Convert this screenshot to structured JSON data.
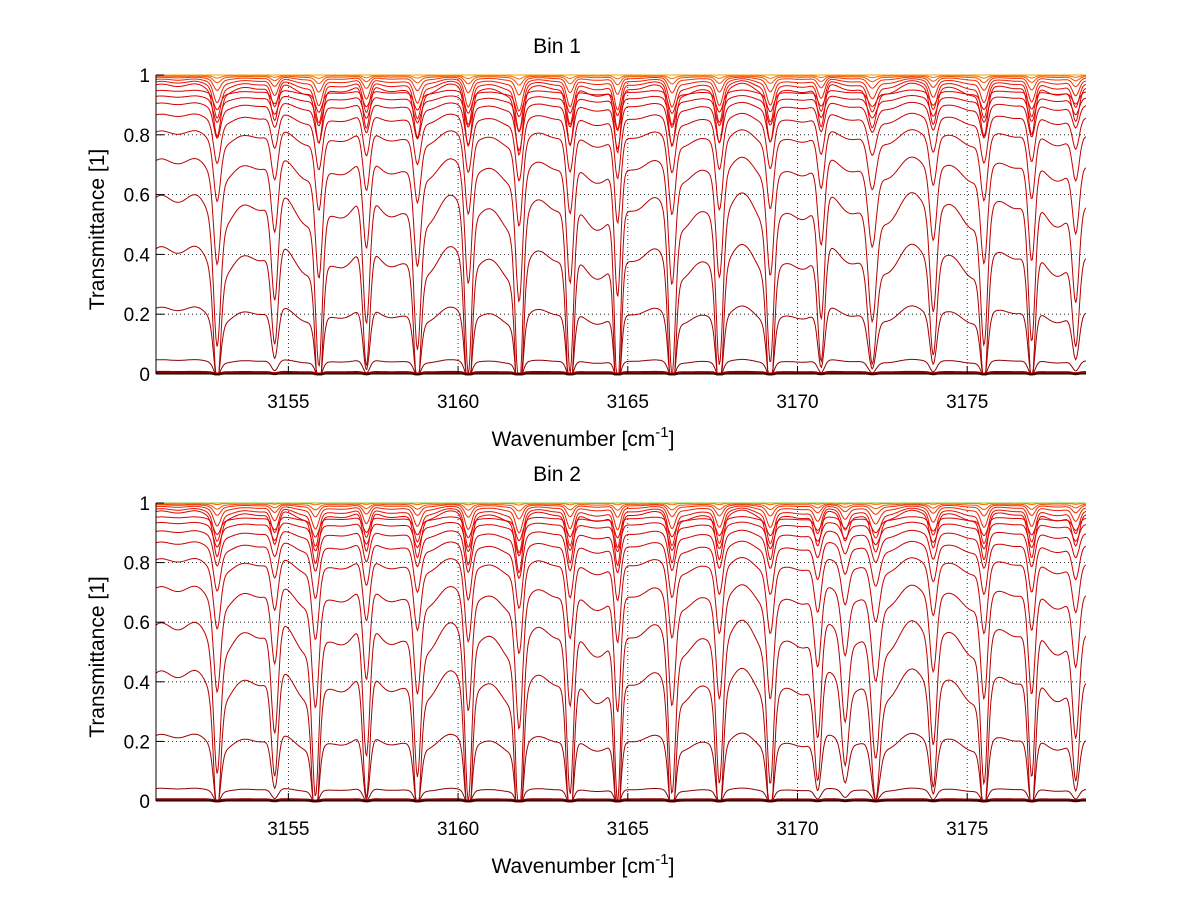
{
  "chart_data": [
    {
      "type": "line",
      "title": "Bin 1",
      "xlabel": "Wavenumber [cm",
      "xlabel_sup": "-1",
      "xlabel_suffix": "]",
      "ylabel": "Transmittance [1]",
      "xlim": [
        3151.1,
        3178.5
      ],
      "ylim": [
        0,
        1
      ],
      "xticks": [
        3155,
        3160,
        3165,
        3170,
        3175
      ],
      "yticks": [
        0,
        0.2,
        0.4,
        0.6,
        0.8,
        1
      ],
      "ytick_labels": [
        "0",
        "0.2",
        "0.4",
        "0.6",
        "0.8",
        "1"
      ],
      "grid": true,
      "grid_style": "dotted",
      "baselines": [
        0.005,
        0.045,
        0.21,
        0.4,
        0.57,
        0.7,
        0.8,
        0.86,
        0.9,
        0.925,
        0.945,
        0.96,
        0.972,
        0.982,
        0.99,
        0.995,
        0.998,
        1.0
      ],
      "line_colors": [
        "#8b0000",
        "#8b0000",
        "#a00000",
        "#b00000",
        "#b80000",
        "#c00000",
        "#c80000",
        "#cc0000",
        "#d00000",
        "#d80000",
        "#dd0000",
        "#e00000",
        "#e51000",
        "#ea2000",
        "#ef3000",
        "#f25000",
        "#f57000",
        "#f0a000"
      ],
      "absorption_lines": [
        {
          "x": 3152.9,
          "depth": 0.45,
          "width": 0.1
        },
        {
          "x": 3154.6,
          "depth": 0.38,
          "width": 0.1
        },
        {
          "x": 3155.9,
          "depth": 0.55,
          "width": 0.1
        },
        {
          "x": 3157.3,
          "depth": 0.48,
          "width": 0.1
        },
        {
          "x": 3158.8,
          "depth": 0.48,
          "width": 0.1
        },
        {
          "x": 3160.3,
          "depth": 0.6,
          "width": 0.1
        },
        {
          "x": 3161.8,
          "depth": 0.65,
          "width": 0.1
        },
        {
          "x": 3163.3,
          "depth": 0.62,
          "width": 0.1
        },
        {
          "x": 3164.7,
          "depth": 0.68,
          "width": 0.09
        },
        {
          "x": 3166.3,
          "depth": 0.58,
          "width": 0.1
        },
        {
          "x": 3167.7,
          "depth": 0.55,
          "width": 0.1
        },
        {
          "x": 3169.2,
          "depth": 0.52,
          "width": 0.1
        },
        {
          "x": 3170.7,
          "depth": 0.45,
          "width": 0.1
        },
        {
          "x": 3172.2,
          "depth": 0.4,
          "width": 0.12
        },
        {
          "x": 3174.0,
          "depth": 0.38,
          "width": 0.1
        },
        {
          "x": 3175.5,
          "depth": 0.48,
          "width": 0.1
        },
        {
          "x": 3176.9,
          "depth": 0.52,
          "width": 0.1
        },
        {
          "x": 3178.2,
          "depth": 0.35,
          "width": 0.1
        }
      ]
    },
    {
      "type": "line",
      "title": "Bin 2",
      "xlabel": "Wavenumber [cm",
      "xlabel_sup": "-1",
      "xlabel_suffix": "]",
      "ylabel": "Transmittance [1]",
      "xlim": [
        3151.1,
        3178.5
      ],
      "ylim": [
        0,
        1
      ],
      "xticks": [
        3155,
        3160,
        3165,
        3170,
        3175
      ],
      "yticks": [
        0,
        0.2,
        0.4,
        0.6,
        0.8,
        1
      ],
      "ytick_labels": [
        "0",
        "0.2",
        "0.4",
        "0.6",
        "0.8",
        "1"
      ],
      "grid": true,
      "grid_style": "dotted",
      "baselines": [
        0.004,
        0.04,
        0.21,
        0.41,
        0.57,
        0.7,
        0.8,
        0.86,
        0.9,
        0.93,
        0.95,
        0.965,
        0.975,
        0.985,
        0.992,
        0.996,
        0.999,
        1.0
      ],
      "line_colors": [
        "#8b0000",
        "#8b0000",
        "#a00000",
        "#b00000",
        "#b80000",
        "#c00000",
        "#c80000",
        "#cc0000",
        "#d00000",
        "#d80000",
        "#dd0000",
        "#e00000",
        "#e51000",
        "#ea2000",
        "#ef3000",
        "#f25000",
        "#f57000",
        "#8cc63f"
      ],
      "absorption_lines": [
        {
          "x": 3152.9,
          "depth": 0.45,
          "width": 0.1
        },
        {
          "x": 3154.6,
          "depth": 0.4,
          "width": 0.1
        },
        {
          "x": 3155.8,
          "depth": 0.55,
          "width": 0.1
        },
        {
          "x": 3157.3,
          "depth": 0.5,
          "width": 0.1
        },
        {
          "x": 3158.8,
          "depth": 0.48,
          "width": 0.1
        },
        {
          "x": 3160.3,
          "depth": 0.6,
          "width": 0.1
        },
        {
          "x": 3161.8,
          "depth": 0.65,
          "width": 0.1
        },
        {
          "x": 3163.3,
          "depth": 0.6,
          "width": 0.1
        },
        {
          "x": 3164.7,
          "depth": 0.62,
          "width": 0.09
        },
        {
          "x": 3166.3,
          "depth": 0.55,
          "width": 0.1
        },
        {
          "x": 3167.7,
          "depth": 0.52,
          "width": 0.1
        },
        {
          "x": 3169.2,
          "depth": 0.5,
          "width": 0.1
        },
        {
          "x": 3170.6,
          "depth": 0.4,
          "width": 0.1
        },
        {
          "x": 3171.4,
          "depth": 0.3,
          "width": 0.1
        },
        {
          "x": 3172.3,
          "depth": 0.42,
          "width": 0.12
        },
        {
          "x": 3174.0,
          "depth": 0.4,
          "width": 0.1
        },
        {
          "x": 3175.5,
          "depth": 0.52,
          "width": 0.1
        },
        {
          "x": 3176.9,
          "depth": 0.55,
          "width": 0.1
        },
        {
          "x": 3178.2,
          "depth": 0.38,
          "width": 0.1
        }
      ]
    }
  ]
}
